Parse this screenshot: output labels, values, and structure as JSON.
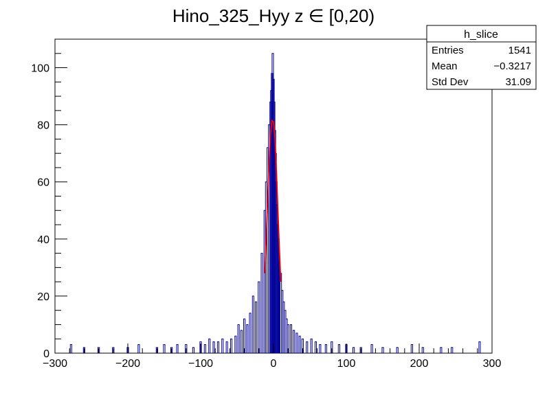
{
  "chart_data": {
    "type": "histogram",
    "title": "Hino_325_Hyy z  ∈ [0,20)",
    "xlabel": "",
    "ylabel": "",
    "xlim": [
      -300,
      300
    ],
    "ylim": [
      0,
      110
    ],
    "x_ticks": [
      -300,
      -200,
      -100,
      0,
      100,
      200,
      300
    ],
    "x_tick_labels": [
      "−300",
      "−200",
      "−100",
      "0",
      "100",
      "200",
      "300"
    ],
    "y_ticks": [
      0,
      20,
      40,
      60,
      80,
      100
    ],
    "y_tick_labels": [
      "0",
      "20",
      "40",
      "60",
      "80",
      "100"
    ],
    "colors": {
      "histogram": "#000099",
      "fit": "#ff0000",
      "axis": "#000000"
    },
    "stats_box": {
      "name": "h_slice",
      "rows": [
        {
          "label": "Entries",
          "value": "1541"
        },
        {
          "label": "Mean",
          "value": "−0.3217"
        },
        {
          "label": "Std Dev",
          "value": "31.09"
        }
      ]
    },
    "series": [
      {
        "style": "histogram-outline",
        "bins": {
          "x": [
            -278,
            -260,
            -240,
            -220,
            -200,
            -185,
            -160,
            -150,
            -140,
            -132,
            -120,
            -110,
            -100,
            -94,
            -88,
            -82,
            -76,
            -70,
            -64,
            -58,
            -52,
            -48,
            -44,
            -40,
            -36,
            -32,
            -28,
            -24,
            -20,
            -16,
            -12,
            -10,
            -8,
            -6,
            -4,
            -3,
            -2,
            -1,
            0,
            1,
            2,
            3,
            4,
            5,
            6,
            7,
            8,
            10,
            12,
            14,
            16,
            18,
            20,
            24,
            28,
            32,
            36,
            40,
            46,
            52,
            58,
            64,
            72,
            80,
            90,
            100,
            110,
            120,
            135,
            150,
            170,
            190,
            205,
            230,
            245,
            283
          ],
          "values": [
            3,
            2,
            2,
            2,
            2,
            3,
            2,
            3,
            2,
            3,
            3,
            2,
            4,
            3,
            5,
            4,
            4,
            5,
            4,
            5,
            6,
            10,
            8,
            12,
            10,
            14,
            20,
            18,
            25,
            35,
            50,
            60,
            72,
            80,
            88,
            92,
            98,
            105,
            96,
            88,
            78,
            70,
            60,
            52,
            45,
            40,
            32,
            28,
            22,
            18,
            15,
            12,
            10,
            10,
            8,
            7,
            6,
            5,
            4,
            5,
            4,
            3,
            3,
            4,
            3,
            3,
            2,
            2,
            3,
            2,
            2,
            3,
            2,
            2,
            2,
            4
          ]
        }
      },
      {
        "style": "fit-line",
        "model": "gaussian",
        "points": {
          "x": [
            -12,
            -10,
            -8,
            -6,
            -4,
            -2,
            0,
            2,
            4,
            6,
            8,
            10
          ],
          "y": [
            28,
            40,
            54,
            67,
            77,
            81.5,
            81,
            75,
            64,
            50,
            37,
            25
          ]
        }
      }
    ]
  }
}
